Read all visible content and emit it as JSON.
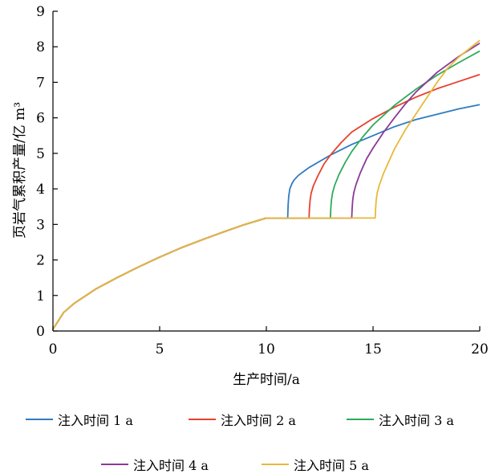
{
  "chart_data": {
    "type": "line",
    "title": "",
    "xlabel": "生产时间/a",
    "ylabel": "页岩气累积产量/亿 m³",
    "xlim": [
      0,
      20
    ],
    "ylim": [
      0,
      9
    ],
    "xticks": [
      "0",
      "5",
      "10",
      "15",
      "20"
    ],
    "yticks": [
      "0",
      "1",
      "2",
      "3",
      "4",
      "5",
      "6",
      "7",
      "8",
      "9"
    ],
    "grid": false,
    "legend_position": "bottom",
    "base_curve": {
      "x": [
        0,
        0.5,
        1,
        2,
        3,
        4,
        5,
        6,
        7,
        8,
        9,
        10
      ],
      "y": [
        0.05,
        0.52,
        0.78,
        1.18,
        1.5,
        1.8,
        2.08,
        2.34,
        2.57,
        2.79,
        3.0,
        3.18
      ]
    },
    "series": [
      {
        "name": "注入时间 1 a",
        "color": "#2f7bbf",
        "x": [
          11.0,
          11.02,
          11.05,
          11.1,
          11.2,
          11.3,
          11.5,
          12,
          13,
          14,
          15,
          16,
          17,
          18,
          19,
          20
        ],
        "y": [
          3.18,
          3.55,
          3.8,
          4.0,
          4.15,
          4.25,
          4.38,
          4.6,
          4.95,
          5.25,
          5.5,
          5.75,
          5.95,
          6.1,
          6.25,
          6.37
        ]
      },
      {
        "name": "注入时间 2 a",
        "color": "#e8402e",
        "x": [
          12.0,
          12.02,
          12.05,
          12.1,
          12.2,
          12.4,
          12.7,
          13,
          13.5,
          14,
          15,
          16,
          17,
          18,
          19,
          20
        ],
        "y": [
          3.18,
          3.45,
          3.68,
          3.88,
          4.08,
          4.35,
          4.7,
          4.95,
          5.3,
          5.6,
          5.98,
          6.3,
          6.58,
          6.82,
          7.02,
          7.22
        ]
      },
      {
        "name": "注入时间 3 a",
        "color": "#2eab5a",
        "x": [
          13.0,
          13.02,
          13.05,
          13.1,
          13.2,
          13.4,
          13.7,
          14,
          14.5,
          15,
          16,
          17,
          18,
          19,
          20
        ],
        "y": [
          3.18,
          3.45,
          3.68,
          3.88,
          4.1,
          4.4,
          4.75,
          5.05,
          5.45,
          5.8,
          6.35,
          6.8,
          7.2,
          7.55,
          7.88
        ]
      },
      {
        "name": "注入时间 4 a",
        "color": "#8a3a96",
        "x": [
          14.0,
          14.02,
          14.05,
          14.1,
          14.2,
          14.4,
          14.7,
          15,
          15.5,
          16,
          16.5,
          17,
          18,
          19,
          20
        ],
        "y": [
          3.18,
          3.45,
          3.7,
          3.9,
          4.12,
          4.45,
          4.85,
          5.15,
          5.6,
          6.0,
          6.38,
          6.72,
          7.28,
          7.72,
          8.1
        ]
      },
      {
        "name": "注入时间 5 a",
        "color": "#e8b83a",
        "x": [
          15.1,
          15.12,
          15.15,
          15.2,
          15.3,
          15.5,
          15.8,
          16,
          16.5,
          17,
          17.5,
          18,
          18.5,
          19,
          20
        ],
        "y": [
          3.18,
          3.45,
          3.7,
          3.9,
          4.12,
          4.45,
          4.85,
          5.12,
          5.65,
          6.1,
          6.55,
          7.0,
          7.4,
          7.7,
          8.18
        ]
      }
    ]
  }
}
